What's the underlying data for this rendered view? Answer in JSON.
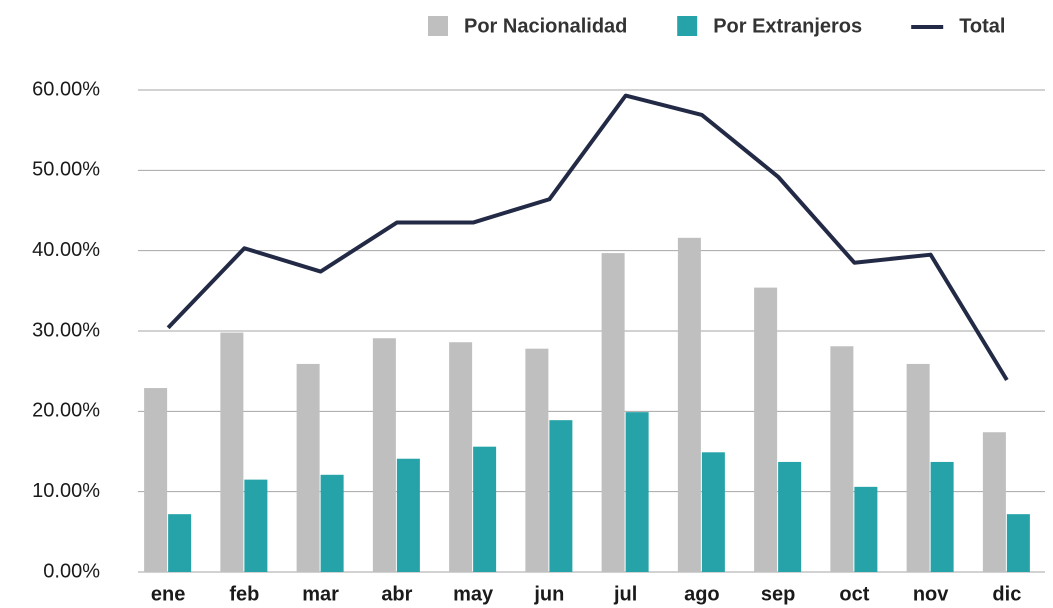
{
  "chart_data": {
    "type": "bar_line",
    "categories": [
      "ene",
      "feb",
      "mar",
      "abr",
      "may",
      "jun",
      "jul",
      "ago",
      "sep",
      "oct",
      "nov",
      "dic"
    ],
    "series": [
      {
        "name": "Por Nacionalidad",
        "color": "#bfbfbf",
        "type": "bar",
        "values": [
          22.9,
          29.8,
          25.9,
          29.1,
          28.6,
          27.8,
          39.7,
          41.6,
          35.4,
          28.1,
          25.9,
          17.4
        ]
      },
      {
        "name": "Por Extranjeros",
        "color": "#26a3a8",
        "type": "bar",
        "values": [
          7.2,
          11.5,
          12.1,
          14.1,
          15.6,
          18.9,
          19.9,
          14.9,
          13.7,
          10.6,
          13.7,
          7.2
        ]
      },
      {
        "name": "Total",
        "color": "#232a45",
        "type": "line",
        "values": [
          30.4,
          40.3,
          37.4,
          43.5,
          43.5,
          46.4,
          59.3,
          56.9,
          49.2,
          38.5,
          39.5,
          23.9
        ]
      }
    ],
    "ylim": [
      0,
      60
    ],
    "yticks": [
      {
        "value": 0,
        "label": "0.00%"
      },
      {
        "value": 10,
        "label": "10.00%"
      },
      {
        "value": 20,
        "label": "20.00%"
      },
      {
        "value": 30,
        "label": "30.00%"
      },
      {
        "value": 40,
        "label": "40.00%"
      },
      {
        "value": 50,
        "label": "50.00%"
      },
      {
        "value": 60,
        "label": "60.00%"
      }
    ],
    "grid": true,
    "legend": "top-right"
  }
}
